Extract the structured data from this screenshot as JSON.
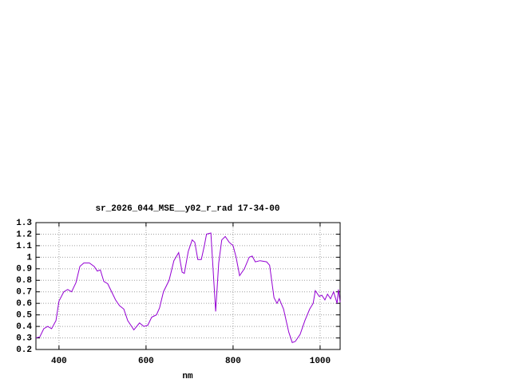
{
  "chart_data": {
    "type": "line",
    "title": "sr_2026_044_MSE__y02_r_rad 17-34-00",
    "x_label": "nm",
    "x": [
      347,
      356,
      365,
      374,
      383,
      393,
      400,
      411,
      420,
      429,
      439,
      448,
      457,
      470,
      481,
      488,
      495,
      503,
      512,
      521,
      530,
      539,
      549,
      558,
      567,
      572,
      585,
      595,
      604,
      613,
      624,
      631,
      640,
      653,
      664,
      675,
      683,
      688,
      697,
      706,
      712,
      719,
      727,
      734,
      739,
      749,
      754,
      760,
      767,
      774,
      782,
      791,
      800,
      807,
      815,
      826,
      837,
      844,
      851,
      862,
      877,
      884,
      894,
      901,
      906,
      916,
      928,
      936,
      943,
      954,
      965,
      976,
      984,
      989,
      998,
      1004,
      1011,
      1017,
      1024,
      1031,
      1039,
      1042,
      1046
    ],
    "series": [
      {
        "color": "#9400d3",
        "values": [
          0.3,
          0.31,
          0.38,
          0.4,
          0.38,
          0.45,
          0.62,
          0.7,
          0.72,
          0.7,
          0.78,
          0.92,
          0.95,
          0.95,
          0.92,
          0.88,
          0.89,
          0.79,
          0.77,
          0.7,
          0.63,
          0.58,
          0.55,
          0.45,
          0.4,
          0.37,
          0.43,
          0.4,
          0.41,
          0.48,
          0.5,
          0.56,
          0.7,
          0.8,
          0.97,
          1.04,
          0.87,
          0.86,
          1.05,
          1.15,
          1.13,
          0.98,
          0.98,
          1.1,
          1.2,
          1.21,
          0.9,
          0.53,
          0.95,
          1.15,
          1.18,
          1.13,
          1.1,
          1.0,
          0.84,
          0.9,
          1.0,
          1.01,
          0.96,
          0.97,
          0.96,
          0.93,
          0.65,
          0.6,
          0.64,
          0.55,
          0.35,
          0.26,
          0.27,
          0.33,
          0.45,
          0.55,
          0.6,
          0.71,
          0.66,
          0.67,
          0.63,
          0.68,
          0.64,
          0.7,
          0.6,
          0.72,
          0.61
        ]
      }
    ],
    "xlim": [
      347,
      1046
    ],
    "ylim": [
      0.2,
      1.3
    ],
    "xticks": [
      400,
      600,
      800,
      1000
    ],
    "yticks": [
      0.2,
      0.3,
      0.4,
      0.5,
      0.6,
      0.7,
      0.8,
      0.9,
      1,
      1.1,
      1.2,
      1.3
    ],
    "grid": true
  }
}
